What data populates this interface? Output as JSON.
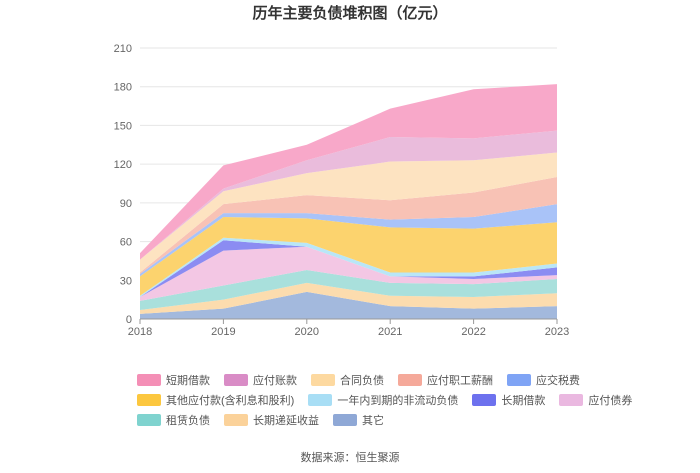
{
  "chart_data": {
    "type": "area",
    "stacked": true,
    "title": "历年主要负债堆积图（亿元）",
    "categories": [
      "2018",
      "2019",
      "2020",
      "2021",
      "2022",
      "2023"
    ],
    "y_ticks": [
      0,
      30,
      60,
      90,
      120,
      150,
      180,
      210
    ],
    "ylim": [
      0,
      210
    ],
    "grid": true,
    "series": [
      {
        "name": "其它",
        "color": "#a3b9dd",
        "values": [
          4,
          8,
          21,
          10,
          8,
          10
        ]
      },
      {
        "name": "长期递延收益",
        "color": "#fcdcae",
        "values": [
          3,
          7,
          7,
          8,
          9,
          10
        ]
      },
      {
        "name": "租赁负债",
        "color": "#a9e0dc",
        "values": [
          7,
          11,
          10,
          10,
          10,
          11
        ]
      },
      {
        "name": "应付债券",
        "color": "#f3c7e4",
        "values": [
          3,
          27,
          18,
          5,
          4,
          3
        ]
      },
      {
        "name": "长期借款",
        "color": "#8b8cf2",
        "values": [
          0,
          8,
          0,
          0,
          2,
          6
        ]
      },
      {
        "name": "一年内到期的非流动负债",
        "color": "#b9e6f7",
        "values": [
          1,
          2,
          3,
          3,
          3,
          3
        ]
      },
      {
        "name": "其他应付款(含利息和股利)",
        "color": "#fcd36e",
        "values": [
          15,
          16,
          19,
          35,
          34,
          32
        ]
      },
      {
        "name": "应交税费",
        "color": "#a9c3f8",
        "values": [
          2,
          3,
          4,
          6,
          9,
          14
        ]
      },
      {
        "name": "应付职工薪酬",
        "color": "#f8c2b5",
        "values": [
          1,
          7,
          14,
          15,
          19,
          21
        ]
      },
      {
        "name": "合同负债",
        "color": "#fde3c1",
        "values": [
          10,
          10,
          17,
          30,
          25,
          19
        ]
      },
      {
        "name": "应付账款",
        "color": "#eabcdc",
        "values": [
          0,
          2,
          10,
          19,
          17,
          17
        ]
      },
      {
        "name": "短期借款",
        "color": "#f8a8c9",
        "values": [
          5,
          18,
          12,
          22,
          38,
          36
        ]
      }
    ],
    "legend": [
      [
        "短期借款",
        "应付账款",
        "合同负债",
        "应付职工薪酬",
        "应交税费"
      ],
      [
        "其他应付款(含利息和股利)",
        "一年内到期的非流动负债",
        "长期借款",
        "应付债券"
      ],
      [
        "租赁负债",
        "长期递延收益",
        "其它"
      ]
    ],
    "legend_colors": {
      "短期借款": "#f48fb6",
      "应付账款": "#d98cc6",
      "合同负债": "#fdd9a0",
      "应付职工薪酬": "#f5a99a",
      "应交税费": "#7fa4f5",
      "其他应付款(含利息和股利)": "#fcc73f",
      "一年内到期的非流动负债": "#a8def5",
      "长期借款": "#6d71ee",
      "应付债券": "#eab8e0",
      "租赁负债": "#7fd3cf",
      "长期递延收益": "#fbd29a",
      "其它": "#8fa8d6"
    }
  },
  "source": "数据来源：恒生聚源"
}
